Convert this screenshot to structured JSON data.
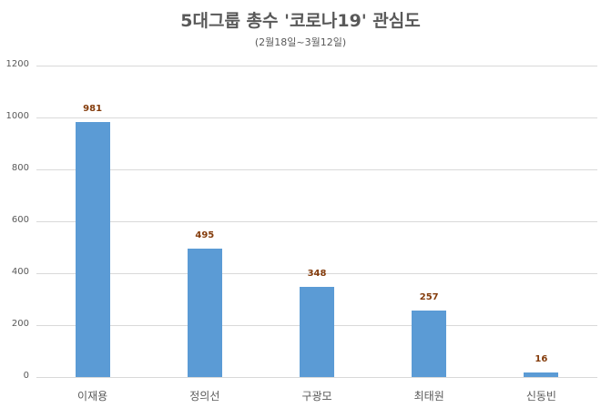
{
  "chart_data": {
    "type": "bar",
    "title": "5대그룹 총수 '코로나19' 관심도",
    "subtitle": "(2월18일~3월12일)",
    "xlabel": "",
    "ylabel": "",
    "categories": [
      "이재용",
      "정의선",
      "구광모",
      "최태원",
      "신동빈"
    ],
    "values": [
      981,
      495,
      348,
      257,
      16
    ],
    "ylim": [
      0,
      1200
    ],
    "yticks": [
      "0",
      "200",
      "400",
      "600",
      "800",
      "1000",
      "1200"
    ],
    "grid": true,
    "legend": "none",
    "bar_color": "#5b9bd5",
    "label_color": "#843c0c"
  }
}
